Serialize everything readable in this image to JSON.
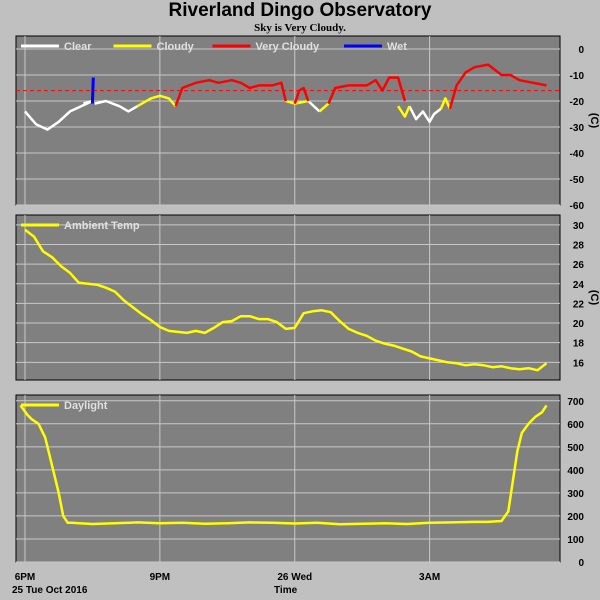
{
  "title": "Riverland Dingo Observatory",
  "subtitle": "Sky is Very Cloudy.",
  "colors": {
    "background": "#c0c0c0",
    "plot_bg": "#808080",
    "grid": "#c8c8c8",
    "clear": "#ffffff",
    "cloudy": "#ffff00",
    "very_cloudy": "#ff0000",
    "wet": "#0000ff",
    "threshold": "#ff0000"
  },
  "x_axis": {
    "tick_labels": [
      "6PM",
      "9PM",
      "26 Wed",
      "3AM"
    ],
    "start_date_label": "25 Tue Oct 2016",
    "label": "Time"
  },
  "chart_data": [
    {
      "type": "line",
      "title": "",
      "ylabel": "(C)",
      "ylim": [
        -60,
        5
      ],
      "yticks": [
        0,
        -10,
        -20,
        -30,
        -40,
        -50,
        -60
      ],
      "xlim": [
        -0.2,
        11.9
      ],
      "grid": true,
      "legend_position": "top-left",
      "threshold_line": -16,
      "legend": [
        "Clear",
        "Cloudy",
        "Very Cloudy",
        "Wet"
      ],
      "series": [
        {
          "name": "Clear",
          "color_key": "clear",
          "segments": [
            [
              [
                0,
                -24
              ],
              [
                0.25,
                -29
              ],
              [
                0.5,
                -31
              ],
              [
                0.75,
                -28
              ],
              [
                1.0,
                -24
              ],
              [
                1.25,
                -22
              ],
              [
                1.5,
                -20
              ],
              [
                1.3,
                -21
              ]
            ],
            [
              [
                1.55,
                -21
              ],
              [
                1.8,
                -20
              ],
              [
                2.1,
                -22
              ],
              [
                2.3,
                -24
              ],
              [
                2.5,
                -22
              ]
            ],
            [
              [
                6.3,
                -20
              ],
              [
                6.55,
                -24
              ]
            ],
            [
              [
                8.55,
                -22
              ],
              [
                8.7,
                -27
              ],
              [
                8.85,
                -24
              ],
              [
                9.0,
                -28
              ],
              [
                9.1,
                -25
              ],
              [
                9.25,
                -23
              ]
            ]
          ]
        },
        {
          "name": "Cloudy",
          "color_key": "cloudy",
          "segments": [
            [
              [
                2.5,
                -22
              ],
              [
                2.8,
                -19
              ],
              [
                3.0,
                -18
              ],
              [
                3.2,
                -19
              ],
              [
                3.35,
                -22
              ]
            ],
            [
              [
                5.8,
                -20
              ],
              [
                6.0,
                -21
              ],
              [
                6.3,
                -20
              ]
            ],
            [
              [
                6.55,
                -24
              ],
              [
                6.75,
                -21
              ]
            ],
            [
              [
                8.3,
                -22
              ],
              [
                8.45,
                -26
              ],
              [
                8.55,
                -22
              ]
            ],
            [
              [
                9.25,
                -23
              ],
              [
                9.35,
                -19
              ],
              [
                9.45,
                -23
              ]
            ]
          ]
        },
        {
          "name": "Very Cloudy",
          "color_key": "very_cloudy",
          "segments": [
            [
              [
                3.35,
                -22
              ],
              [
                3.5,
                -15
              ],
              [
                3.8,
                -13
              ],
              [
                4.1,
                -12
              ],
              [
                4.3,
                -13
              ],
              [
                4.6,
                -12
              ],
              [
                4.8,
                -13
              ],
              [
                5.0,
                -15
              ],
              [
                5.2,
                -14
              ],
              [
                5.5,
                -14
              ],
              [
                5.7,
                -13
              ],
              [
                5.8,
                -20
              ]
            ],
            [
              [
                6.0,
                -21
              ],
              [
                6.1,
                -16
              ],
              [
                6.2,
                -15
              ],
              [
                6.3,
                -20
              ]
            ],
            [
              [
                6.75,
                -21
              ],
              [
                6.9,
                -15
              ],
              [
                7.2,
                -14
              ],
              [
                7.6,
                -14
              ],
              [
                7.8,
                -12
              ],
              [
                7.95,
                -16
              ],
              [
                8.1,
                -11
              ],
              [
                8.3,
                -11
              ],
              [
                8.45,
                -20
              ]
            ],
            [
              [
                9.45,
                -23
              ],
              [
                9.6,
                -14
              ],
              [
                9.8,
                -9
              ],
              [
                10.0,
                -7
              ],
              [
                10.3,
                -6
              ],
              [
                10.6,
                -10
              ],
              [
                10.8,
                -10
              ],
              [
                11.0,
                -12
              ],
              [
                11.3,
                -13
              ],
              [
                11.6,
                -14
              ]
            ]
          ]
        },
        {
          "name": "Wet",
          "color_key": "wet",
          "segments": [
            [
              [
                1.5,
                -21
              ],
              [
                1.52,
                -11
              ]
            ]
          ]
        }
      ]
    },
    {
      "type": "line",
      "title": "",
      "ylabel": "(C)",
      "ylim": [
        14.2,
        31
      ],
      "yticks": [
        30,
        28,
        26,
        24,
        22,
        20,
        18,
        16
      ],
      "xlim": [
        -0.2,
        11.9
      ],
      "grid": true,
      "legend_position": "top-left",
      "legend": [
        "Ambient Temp"
      ],
      "series": [
        {
          "name": "Ambient Temp",
          "color_key": "cloudy",
          "x": [
            0,
            0.2,
            0.4,
            0.6,
            0.8,
            1.0,
            1.2,
            1.4,
            1.6,
            1.8,
            2.0,
            2.2,
            2.4,
            2.6,
            2.8,
            3.0,
            3.2,
            3.4,
            3.6,
            3.8,
            4.0,
            4.2,
            4.4,
            4.6,
            4.8,
            5.0,
            5.2,
            5.4,
            5.6,
            5.8,
            6.0,
            6.2,
            6.4,
            6.6,
            6.8,
            7.0,
            7.2,
            7.4,
            7.6,
            7.8,
            8.0,
            8.2,
            8.4,
            8.6,
            8.8,
            9.0,
            9.2,
            9.4,
            9.6,
            9.8,
            10.0,
            10.2,
            10.4,
            10.6,
            10.8,
            11.0,
            11.2,
            11.4,
            11.6
          ],
          "values": [
            29.5,
            28.8,
            27.3,
            26.7,
            25.8,
            25.1,
            24.1,
            24.0,
            23.9,
            23.6,
            23.2,
            22.3,
            21.6,
            20.9,
            20.3,
            19.6,
            19.2,
            19.1,
            19.0,
            19.2,
            19.0,
            19.5,
            20.1,
            20.2,
            20.7,
            20.7,
            20.4,
            20.4,
            20.1,
            19.4,
            19.5,
            21.0,
            21.2,
            21.3,
            21.1,
            20.2,
            19.4,
            19.0,
            18.7,
            18.2,
            17.9,
            17.7,
            17.4,
            17.1,
            16.6,
            16.4,
            16.2,
            16.0,
            15.9,
            15.7,
            15.8,
            15.7,
            15.5,
            15.6,
            15.4,
            15.3,
            15.4,
            15.2,
            15.9
          ]
        }
      ]
    },
    {
      "type": "line",
      "title": "",
      "ylabel": "",
      "ylim": [
        0,
        725
      ],
      "yticks": [
        700,
        600,
        500,
        400,
        300,
        200,
        100,
        0
      ],
      "xlim": [
        -0.2,
        11.9
      ],
      "grid": true,
      "legend_position": "top-left",
      "legend": [
        "Daylight"
      ],
      "series": [
        {
          "name": "Daylight",
          "color_key": "cloudy",
          "x": [
            -0.1,
            0.05,
            0.15,
            0.3,
            0.45,
            0.6,
            0.75,
            0.85,
            0.95,
            1.05,
            1.2,
            1.5,
            2.0,
            2.5,
            3.0,
            3.5,
            4.0,
            4.5,
            5.0,
            5.5,
            6.0,
            6.5,
            7.0,
            7.5,
            8.0,
            8.5,
            9.0,
            9.5,
            10.0,
            10.3,
            10.6,
            10.75,
            10.85,
            10.95,
            11.05,
            11.2,
            11.35,
            11.5,
            11.6
          ],
          "values": [
            680,
            640,
            620,
            600,
            540,
            420,
            300,
            200,
            170,
            170,
            168,
            165,
            168,
            172,
            168,
            170,
            166,
            168,
            172,
            170,
            167,
            170,
            164,
            166,
            168,
            165,
            170,
            172,
            174,
            174,
            178,
            220,
            350,
            480,
            560,
            600,
            630,
            650,
            680
          ]
        }
      ]
    }
  ]
}
